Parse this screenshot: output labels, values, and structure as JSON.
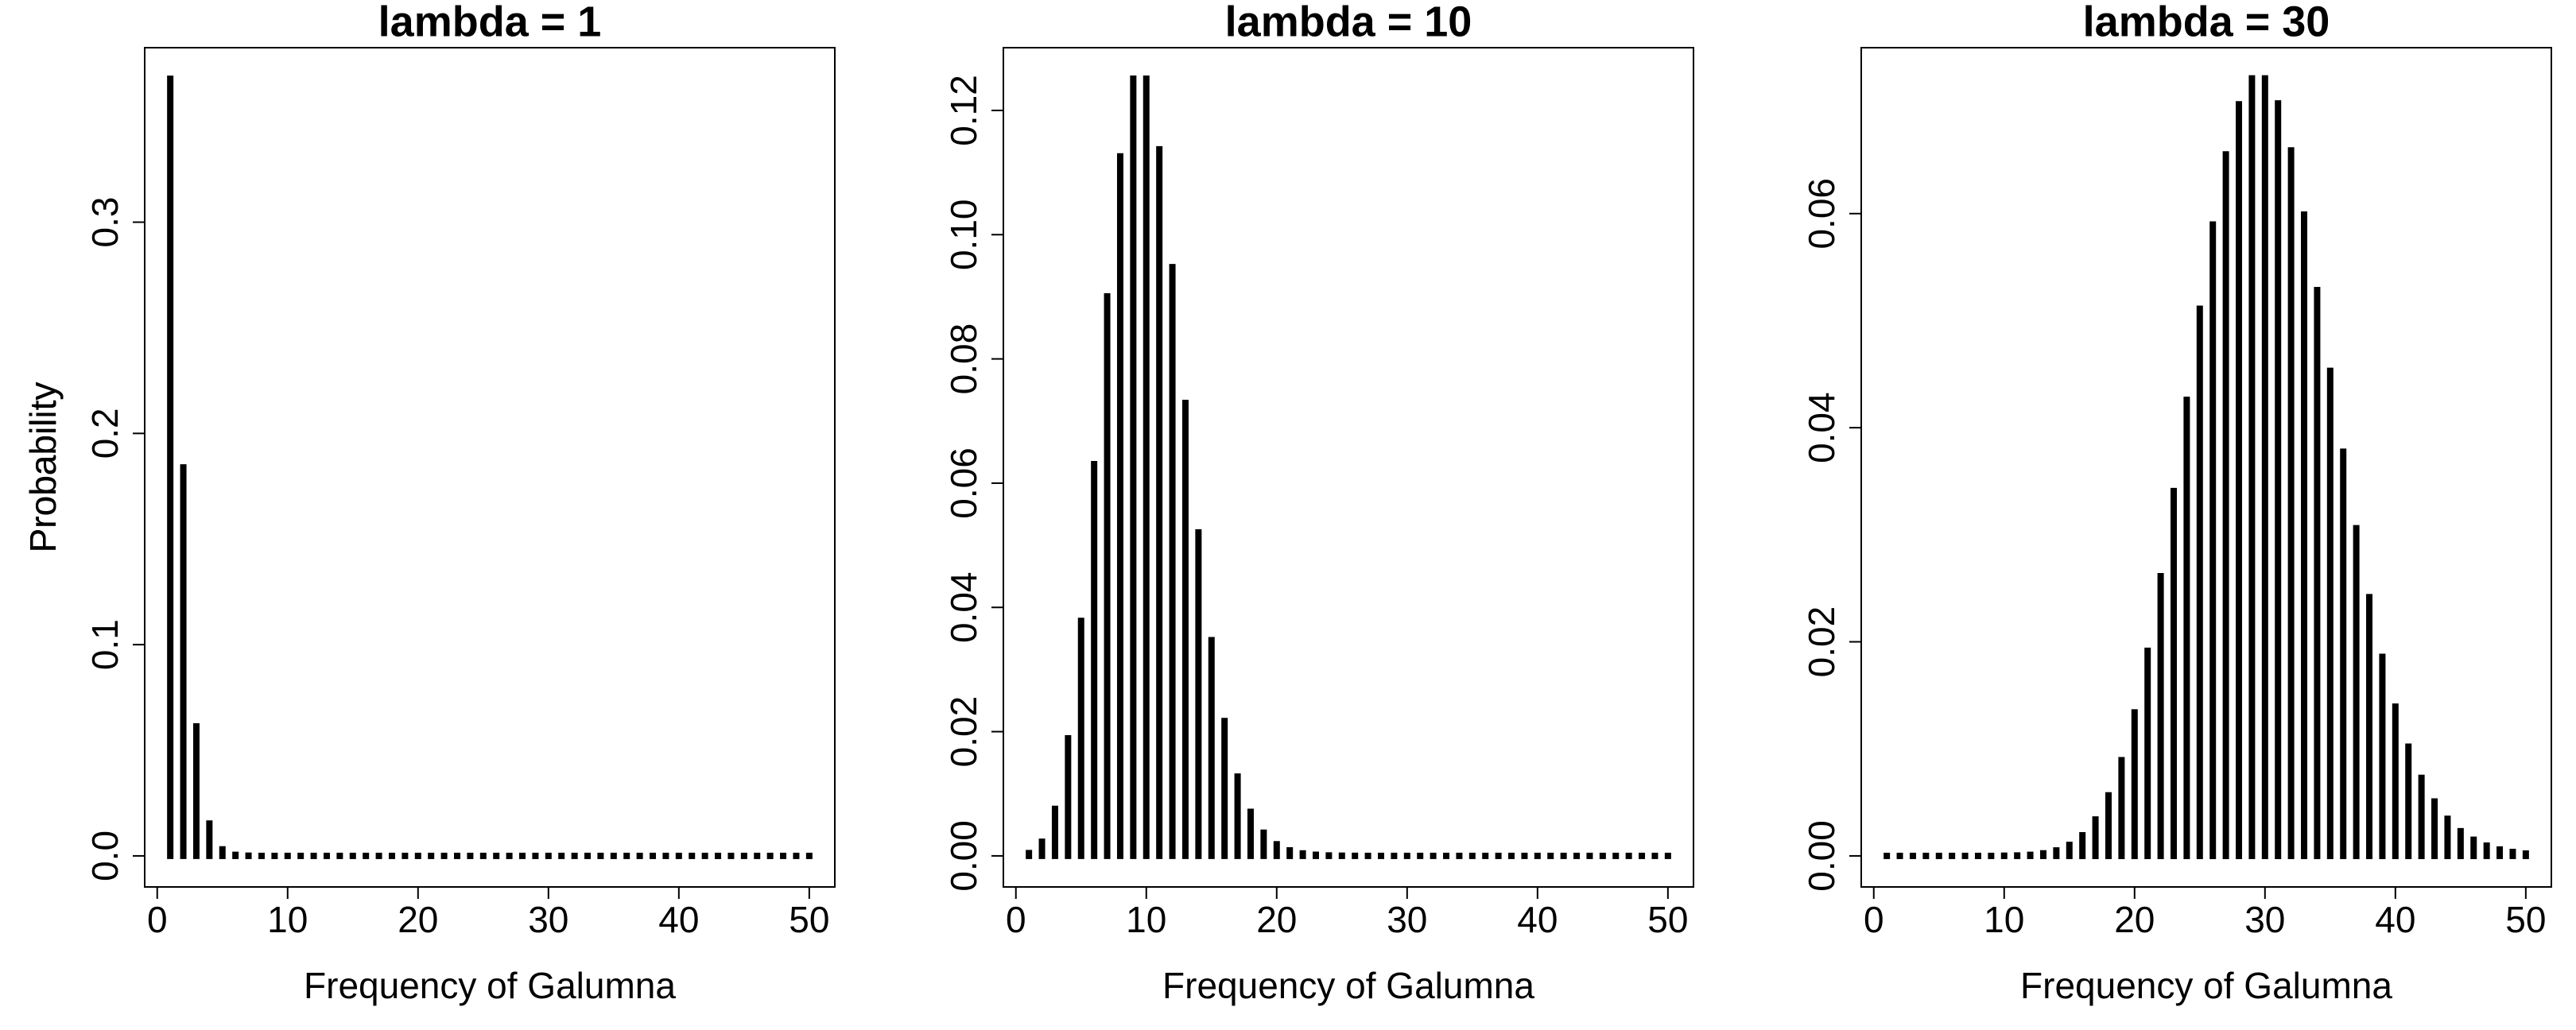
{
  "chart_data": [
    {
      "type": "bar",
      "title": "lambda = 1",
      "xlabel": "Frequency of Galumna",
      "ylabel": "Probability",
      "color": "#000000",
      "x": [
        1,
        2,
        3,
        4,
        5,
        6,
        7,
        8,
        9,
        10,
        11,
        12,
        13,
        14,
        15,
        16,
        17,
        18,
        19,
        20,
        21,
        22,
        23,
        24,
        25,
        26,
        27,
        28,
        29,
        30,
        31,
        32,
        33,
        34,
        35,
        36,
        37,
        38,
        39,
        40,
        41,
        42,
        43,
        44,
        45,
        46,
        47,
        48,
        49,
        50
      ],
      "values": [
        0.3679,
        0.1839,
        0.0613,
        0.0153,
        0.0031,
        0.0005,
        0.0001,
        0,
        0,
        0,
        0,
        0,
        0,
        0,
        0,
        0,
        0,
        0,
        0,
        0,
        0,
        0,
        0,
        0,
        0,
        0,
        0,
        0,
        0,
        0,
        0,
        0,
        0,
        0,
        0,
        0,
        0,
        0,
        0,
        0,
        0,
        0,
        0,
        0,
        0,
        0,
        0,
        0,
        0,
        0
      ],
      "xlim": [
        -0.96,
        51.96
      ],
      "xticks": [
        0,
        10,
        20,
        30,
        40,
        50
      ],
      "ylim": [
        -0.0147,
        0.3826
      ],
      "yticks": [
        {
          "value": 0,
          "label": "0.0"
        },
        {
          "value": 0.1,
          "label": "0.1"
        },
        {
          "value": 0.2,
          "label": "0.2"
        },
        {
          "value": 0.3,
          "label": "0.3"
        }
      ]
    },
    {
      "type": "bar",
      "title": "lambda = 10",
      "xlabel": "Frequency of Galumna",
      "ylabel": "Probability",
      "color": "#000000",
      "x": [
        1,
        2,
        3,
        4,
        5,
        6,
        7,
        8,
        9,
        10,
        11,
        12,
        13,
        14,
        15,
        16,
        17,
        18,
        19,
        20,
        21,
        22,
        23,
        24,
        25,
        26,
        27,
        28,
        29,
        30,
        31,
        32,
        33,
        34,
        35,
        36,
        37,
        38,
        39,
        40,
        41,
        42,
        43,
        44,
        45,
        46,
        47,
        48,
        49,
        50
      ],
      "values": [
        0.00045,
        0.00227,
        0.00757,
        0.01892,
        0.03783,
        0.06306,
        0.09008,
        0.1126,
        0.12511,
        0.12511,
        0.11374,
        0.09478,
        0.07291,
        0.05208,
        0.03472,
        0.0217,
        0.01276,
        0.00709,
        0.00373,
        0.00187,
        0.00089,
        0.0004,
        0.00018,
        7e-05,
        3e-05,
        1e-05,
        0,
        0,
        0,
        0,
        0,
        0,
        0,
        0,
        0,
        0,
        0,
        0,
        0,
        0,
        0,
        0,
        0,
        0,
        0,
        0,
        0,
        0,
        0,
        0
      ],
      "xlim": [
        -0.96,
        51.96
      ],
      "xticks": [
        0,
        10,
        20,
        30,
        40,
        50
      ],
      "ylim": [
        -0.005,
        0.1301
      ],
      "yticks": [
        {
          "value": 0,
          "label": "0.00"
        },
        {
          "value": 0.02,
          "label": "0.02"
        },
        {
          "value": 0.04,
          "label": "0.04"
        },
        {
          "value": 0.06,
          "label": "0.06"
        },
        {
          "value": 0.08,
          "label": "0.08"
        },
        {
          "value": 0.1,
          "label": "0.10"
        },
        {
          "value": 0.12,
          "label": "0.12"
        }
      ]
    },
    {
      "type": "bar",
      "title": "lambda = 30",
      "xlabel": "Frequency of Galumna",
      "ylabel": "Probability",
      "color": "#000000",
      "x": [
        1,
        2,
        3,
        4,
        5,
        6,
        7,
        8,
        9,
        10,
        11,
        12,
        13,
        14,
        15,
        16,
        17,
        18,
        19,
        20,
        21,
        22,
        23,
        24,
        25,
        26,
        27,
        28,
        29,
        30,
        31,
        32,
        33,
        34,
        35,
        36,
        37,
        38,
        39,
        40,
        41,
        42,
        43,
        44,
        45,
        46,
        47,
        48,
        49,
        50
      ],
      "values": [
        0,
        0,
        0,
        0,
        0,
        0,
        0,
        0,
        0,
        2e-05,
        4e-05,
        0.0001,
        0.00024,
        0.00051,
        0.00103,
        0.00193,
        0.0034,
        0.00566,
        0.00894,
        0.01341,
        0.01916,
        0.02613,
        0.03408,
        0.0426,
        0.05111,
        0.05898,
        0.06553,
        0.07021,
        0.07263,
        0.07263,
        0.07029,
        0.0659,
        0.05991,
        0.05286,
        0.04531,
        0.03776,
        0.03061,
        0.02417,
        0.01859,
        0.01394,
        0.0102,
        0.00729,
        0.00508,
        0.00347,
        0.00231,
        0.00151,
        0.00096,
        0.0006,
        0.00037,
        0.00022
      ],
      "xlim": [
        -0.96,
        51.96
      ],
      "xticks": [
        0,
        10,
        20,
        30,
        40,
        50
      ],
      "ylim": [
        -0.0029,
        0.0755
      ],
      "yticks": [
        {
          "value": 0,
          "label": "0.00"
        },
        {
          "value": 0.02,
          "label": "0.02"
        },
        {
          "value": 0.04,
          "label": "0.04"
        },
        {
          "value": 0.06,
          "label": "0.06"
        }
      ]
    }
  ]
}
